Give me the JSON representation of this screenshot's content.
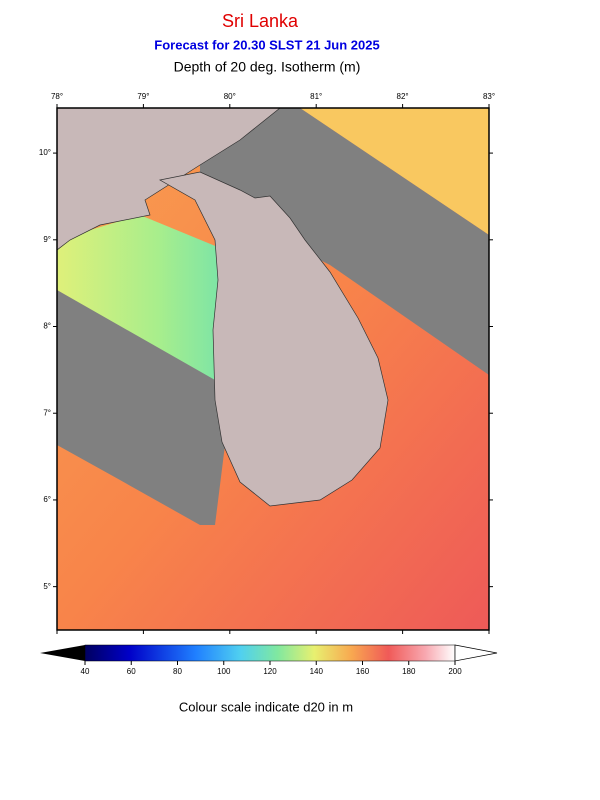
{
  "header": {
    "title": "Sri Lanka",
    "subtitle": "Forecast for  20.30 SLST 21 Jun 2025",
    "variable": "Depth of 20 deg. Isotherm (m)"
  },
  "map": {
    "xlim": [
      78,
      83
    ],
    "ylim": [
      4.5,
      10.52
    ],
    "xticks": [
      {
        "value": 78,
        "label": "78°"
      },
      {
        "value": 79,
        "label": "79°"
      },
      {
        "value": 80,
        "label": "80°"
      },
      {
        "value": 81,
        "label": "81°"
      },
      {
        "value": 82,
        "label": "82°"
      },
      {
        "value": 83,
        "label": "83°"
      }
    ],
    "yticks": [
      {
        "value": 5,
        "label": "5°"
      },
      {
        "value": 6,
        "label": "6°"
      },
      {
        "value": 7,
        "label": "7°"
      },
      {
        "value": 8,
        "label": "8°"
      },
      {
        "value": 9,
        "label": "9°"
      },
      {
        "value": 10,
        "label": "10°"
      }
    ]
  },
  "colorbar": {
    "lim": [
      40,
      200
    ],
    "ticks": [
      40,
      60,
      80,
      100,
      120,
      140,
      160,
      180,
      200
    ],
    "caption": "Colour scale indicate d20 in m"
  }
}
